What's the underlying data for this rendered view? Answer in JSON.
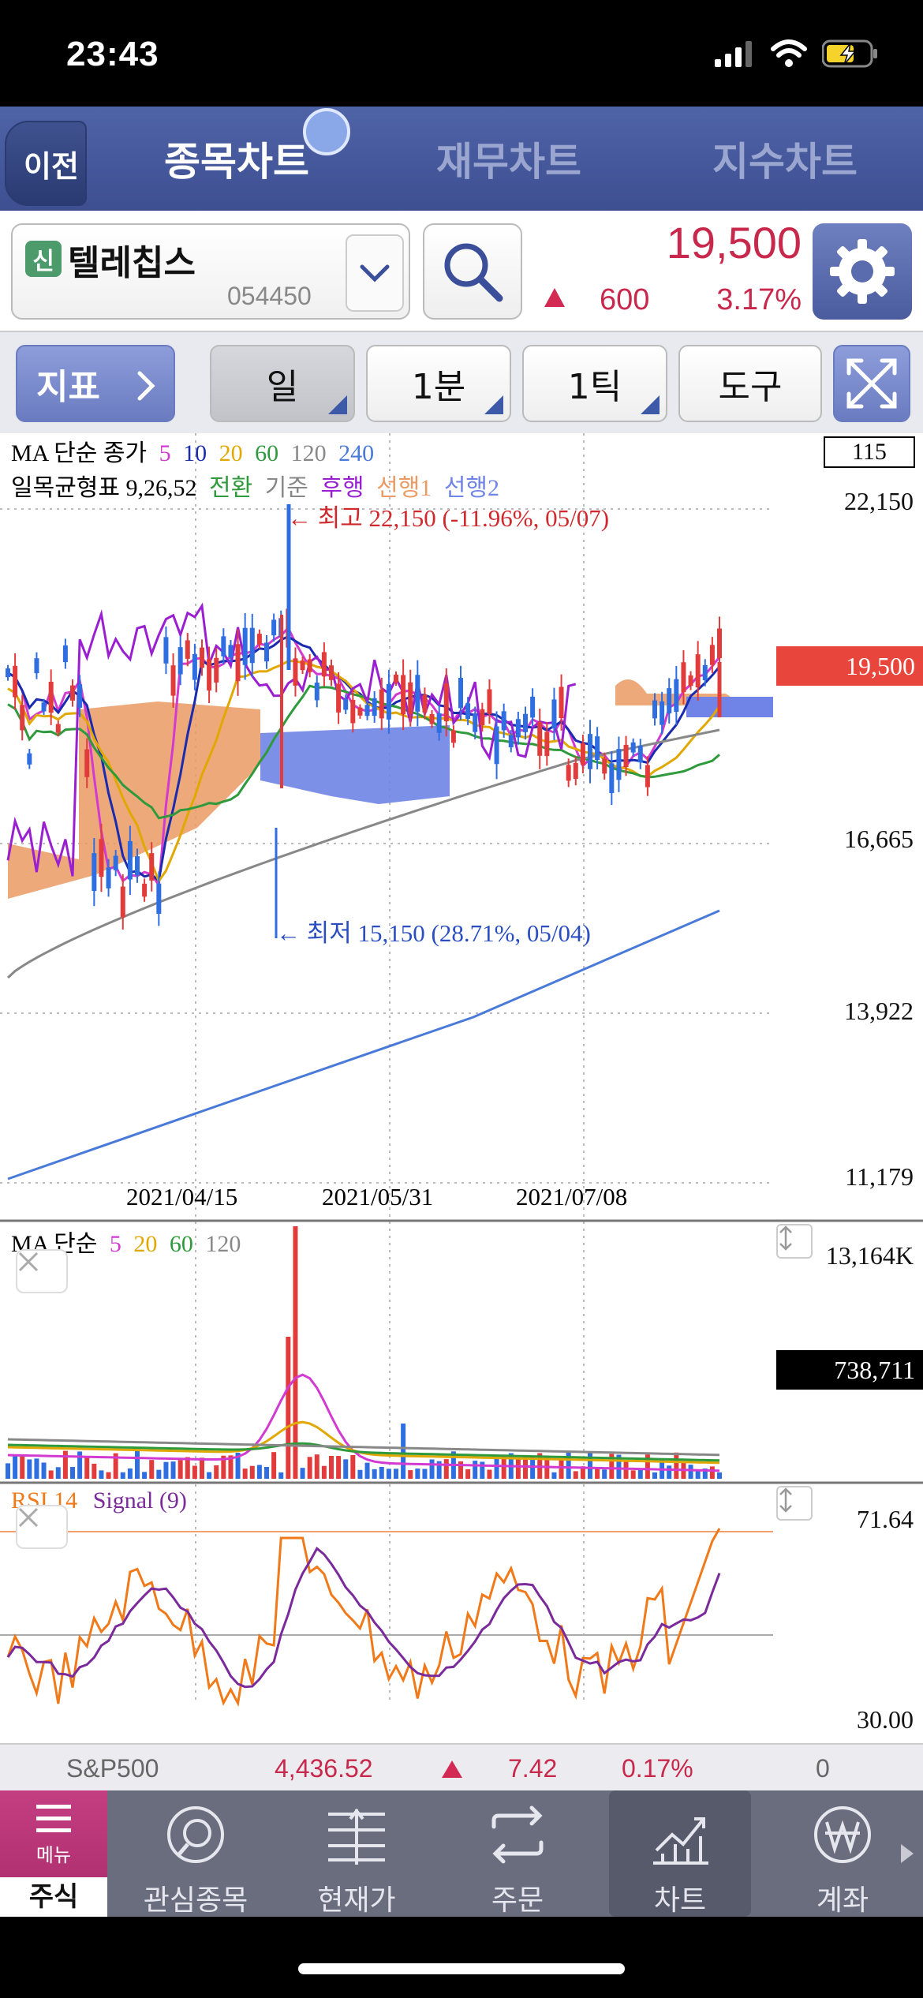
{
  "status": {
    "time": "23:43"
  },
  "header": {
    "back_label": "이전",
    "tabs": [
      {
        "label": "종목차트",
        "active": true
      },
      {
        "label": "재무차트",
        "active": false
      },
      {
        "label": "지수차트",
        "active": false
      }
    ]
  },
  "stock": {
    "badge": "신",
    "name": "텔레칩스",
    "code": "054450",
    "price": "19,500",
    "change": "600",
    "change_pct": "3.17%",
    "up_color": "#c8284c"
  },
  "toolbar": {
    "indicator_label": "지표",
    "period_day": "일",
    "period_min": "1분",
    "period_tick": "1틱",
    "tools": "도구"
  },
  "chart": {
    "ma_legend": {
      "prefix": "MA 단순 종가",
      "periods": [
        "5",
        "10",
        "20",
        "60",
        "120",
        "240"
      ]
    },
    "ichimoku_legend": {
      "prefix": "일목균형표 9,26,52",
      "items": [
        "전환",
        "기준",
        "후행",
        "선행1",
        "선행2"
      ]
    },
    "box_value": "115",
    "price_axis": [
      "22,150",
      "16,665",
      "13,922",
      "11,179"
    ],
    "current_price_tag": "19,500",
    "high_annotation": "← 최고 22,150 (-11.96%, 05/07)",
    "low_annotation": "← 최저 15,150 (28.71%, 05/04)",
    "date_labels": [
      "2021/04/15",
      "2021/05/31",
      "2021/07/08"
    ],
    "volume": {
      "legend_prefix": "MA 단순",
      "periods": [
        "5",
        "20",
        "60",
        "120"
      ],
      "axis_top": "13,164K",
      "current_tag": "738,711"
    },
    "rsi": {
      "label": "RSI 14",
      "signal": "Signal (9)",
      "axis_top": "71.64",
      "axis_bottom": "30.00"
    },
    "colors": {
      "ma5": "#d23ad2",
      "ma10": "#1a2bb0",
      "ma20": "#e0a800",
      "ma60": "#2f9a3c",
      "ma120": "#888888",
      "ma240": "#4a7ad8",
      "cloud_up": "#eb9a63",
      "cloud_down": "#6f84e6",
      "lagging": "#9a1fd0",
      "rsi": "#f07a1a",
      "signal": "#7a2a9a"
    }
  },
  "index_bar": {
    "name": "S&P500",
    "value": "4,436.52",
    "change": "7.42",
    "change_pct": "0.17%",
    "volume": "0"
  },
  "nav": {
    "menu_label": "메뉴",
    "stock_label": "주식",
    "items": [
      "관심종목",
      "현재가",
      "주문",
      "차트",
      "계좌"
    ]
  }
}
